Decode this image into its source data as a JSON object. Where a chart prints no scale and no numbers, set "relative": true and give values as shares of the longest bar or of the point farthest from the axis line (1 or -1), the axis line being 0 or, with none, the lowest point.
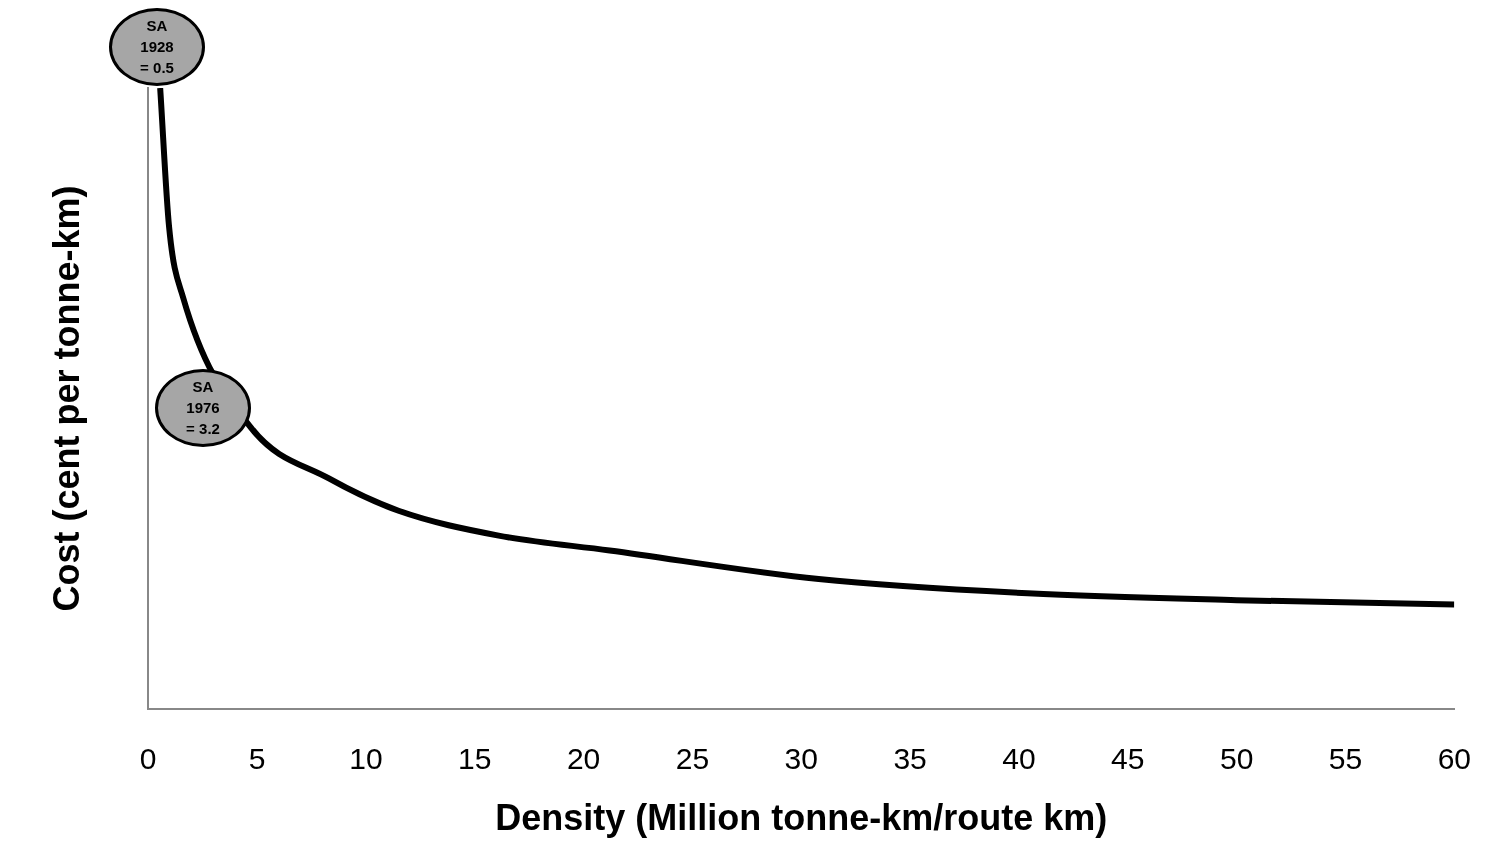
{
  "chart_data": {
    "type": "line",
    "xlabel": "Density (Million tonne-km/route km)",
    "ylabel": "Cost (cent per tonne-km)",
    "relative": true,
    "xlim": [
      0,
      60
    ],
    "xticks": [
      0,
      5,
      10,
      15,
      20,
      25,
      30,
      35,
      40,
      45,
      50,
      55,
      60
    ],
    "series": [
      {
        "color": "#000000",
        "x": [
          0.55,
          0.96,
          1.6,
          4.72,
          8.3,
          11.5,
          16.1,
          21.2,
          30.8,
          40.4,
          50.0,
          60
        ],
        "values": [
          1,
          0.776,
          0.663,
          0.453,
          0.371,
          0.319,
          0.279,
          0.255,
          0.209,
          0.186,
          0.175,
          0.168
        ]
      }
    ],
    "annotations": [
      "SA\n1928\n= 0.5",
      "SA\n1976\n= 3.2"
    ],
    "legend": false,
    "marker": "none",
    "line_style": "solid"
  }
}
